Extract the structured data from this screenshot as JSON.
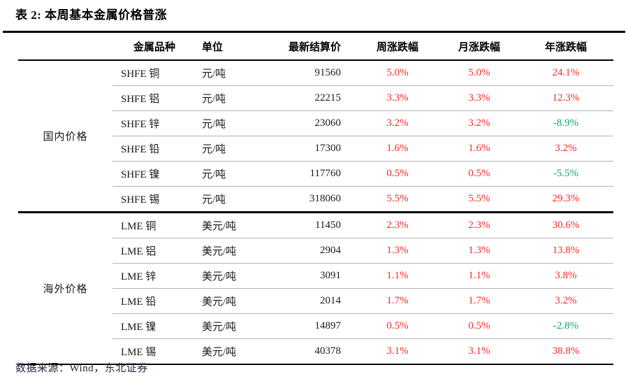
{
  "title": "表 2:  本周基本金属价格普涨",
  "header": {
    "metal": "金属品种",
    "unit": "单位",
    "price": "最新结算价",
    "week": "周涨跌幅",
    "month": "月涨跌幅",
    "year": "年涨跌幅"
  },
  "colors": {
    "up": "#fb2929",
    "down": "#0caa70"
  },
  "groups": [
    {
      "label": "国内价格",
      "rows": [
        {
          "name": "SHFE 铜",
          "unit": "元/吨",
          "price": "91560",
          "week": "5.0%",
          "week_trend": "up",
          "month": "5.0%",
          "month_trend": "up",
          "year": "24.1%",
          "year_trend": "up"
        },
        {
          "name": "SHFE 铝",
          "unit": "元/吨",
          "price": "22215",
          "week": "3.3%",
          "week_trend": "up",
          "month": "3.3%",
          "month_trend": "up",
          "year": "12.3%",
          "year_trend": "up"
        },
        {
          "name": "SHFE 锌",
          "unit": "元/吨",
          "price": "23060",
          "week": "3.2%",
          "week_trend": "up",
          "month": "3.2%",
          "month_trend": "up",
          "year": "-8.9%",
          "year_trend": "down"
        },
        {
          "name": "SHFE 铅",
          "unit": "元/吨",
          "price": "17300",
          "week": "1.6%",
          "week_trend": "up",
          "month": "1.6%",
          "month_trend": "up",
          "year": "3.2%",
          "year_trend": "up"
        },
        {
          "name": "SHFE 镍",
          "unit": "元/吨",
          "price": "117760",
          "week": "0.5%",
          "week_trend": "up",
          "month": "0.5%",
          "month_trend": "up",
          "year": "-5.5%",
          "year_trend": "down"
        },
        {
          "name": "SHFE 锡",
          "unit": "元/吨",
          "price": "318060",
          "week": "5.5%",
          "week_trend": "up",
          "month": "5.5%",
          "month_trend": "up",
          "year": "29.3%",
          "year_trend": "up"
        }
      ]
    },
    {
      "label": "海外价格",
      "rows": [
        {
          "name": "LME 铜",
          "unit": "美元/吨",
          "price": "11450",
          "week": "2.3%",
          "week_trend": "up",
          "month": "2.3%",
          "month_trend": "up",
          "year": "30.6%",
          "year_trend": "up"
        },
        {
          "name": "LME 铝",
          "unit": "美元/吨",
          "price": "2904",
          "week": "1.3%",
          "week_trend": "up",
          "month": "1.3%",
          "month_trend": "up",
          "year": "13.8%",
          "year_trend": "up"
        },
        {
          "name": "LME 锌",
          "unit": "美元/吨",
          "price": "3091",
          "week": "1.1%",
          "week_trend": "up",
          "month": "1.1%",
          "month_trend": "up",
          "year": "3.8%",
          "year_trend": "up"
        },
        {
          "name": "LME 铅",
          "unit": "美元/吨",
          "price": "2014",
          "week": "1.7%",
          "week_trend": "up",
          "month": "1.7%",
          "month_trend": "up",
          "year": "3.2%",
          "year_trend": "up"
        },
        {
          "name": "LME 镍",
          "unit": "美元/吨",
          "price": "14897",
          "week": "0.5%",
          "week_trend": "up",
          "month": "0.5%",
          "month_trend": "up",
          "year": "-2.8%",
          "year_trend": "down"
        },
        {
          "name": "LME 锡",
          "unit": "美元/吨",
          "price": "40378",
          "week": "3.1%",
          "week_trend": "up",
          "month": "3.1%",
          "month_trend": "up",
          "year": "38.8%",
          "year_trend": "up"
        }
      ]
    }
  ],
  "source": "数据来源：Wind，东北证券"
}
